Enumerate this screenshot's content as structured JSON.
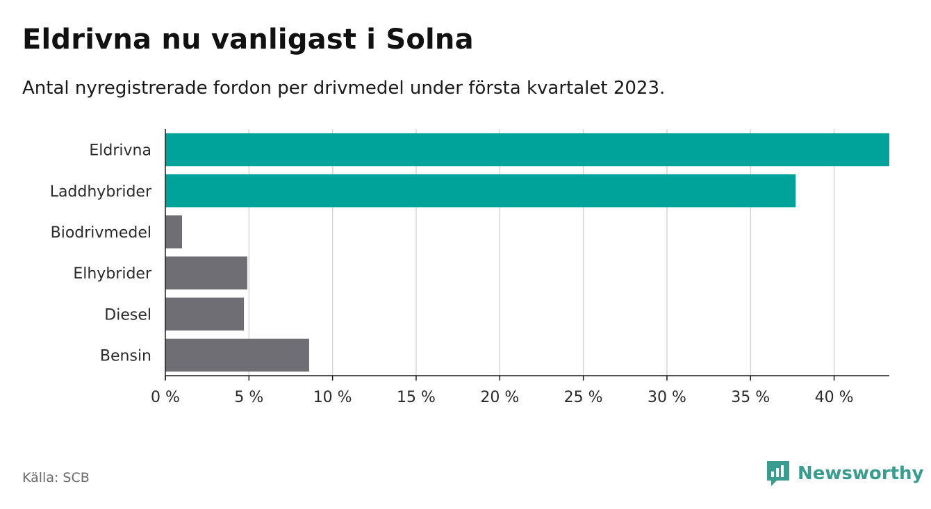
{
  "header": {
    "title": "Eldrivna nu vanligast i Solna",
    "subtitle": "Antal nyregistrerade fordon per drivmedel under första kvartalet 2023."
  },
  "footer": {
    "source": "Källa: SCB",
    "brand": "Newsworthy"
  },
  "colors": {
    "highlight": "#00a39a",
    "muted": "#6f6e74",
    "grid": "#d6d6d6",
    "axis": "#1a1a1a",
    "brand": "#3a9c8f"
  },
  "icons": {
    "logo": "newsworthy-logo-icon"
  },
  "chart_data": {
    "type": "bar",
    "orientation": "horizontal",
    "title": "Eldrivna nu vanligast i Solna",
    "subtitle": "Antal nyregistrerade fordon per drivmedel under första kvartalet 2023.",
    "categories": [
      "Eldrivna",
      "Laddhybrider",
      "Biodrivmedel",
      "Elhybrider",
      "Diesel",
      "Bensin"
    ],
    "values": [
      43.3,
      37.7,
      1.0,
      4.9,
      4.7,
      8.6
    ],
    "highlighted": [
      true,
      true,
      false,
      false,
      false,
      false
    ],
    "xlim": [
      0,
      43.3
    ],
    "xticks": [
      0,
      5,
      10,
      15,
      20,
      25,
      30,
      35,
      40
    ],
    "tick_labels": [
      "0 %",
      "5 %",
      "10 %",
      "15 %",
      "20 %",
      "25 %",
      "30 %",
      "35 %",
      "40 %"
    ],
    "xlabel": "",
    "ylabel": "",
    "grid": true,
    "legend": "none"
  }
}
